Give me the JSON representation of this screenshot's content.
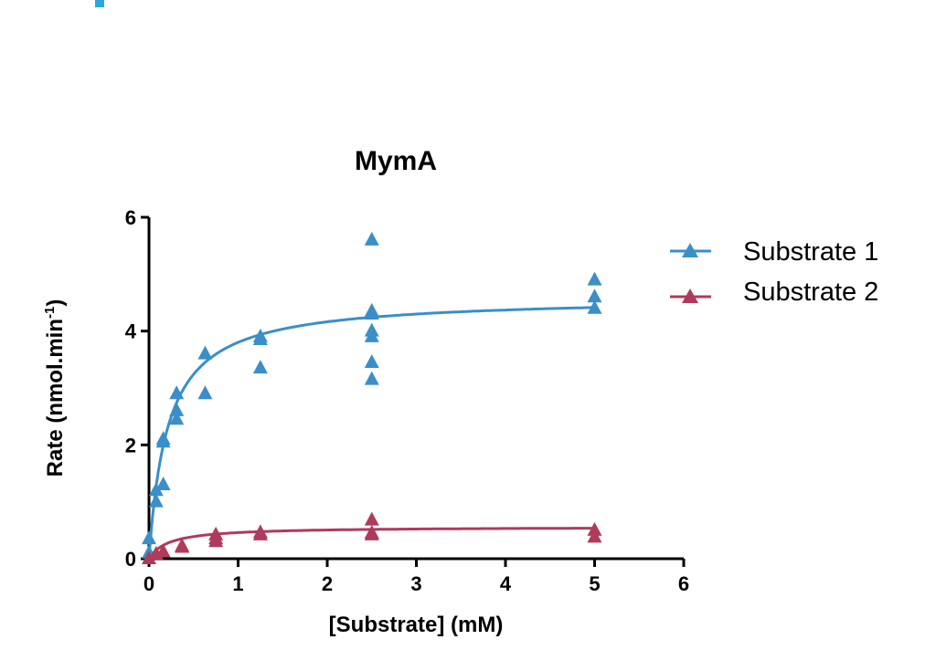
{
  "colors": {
    "substrate1": "#3a8fc8",
    "substrate2": "#b03a5b",
    "corner_mark": "#29a8e0"
  },
  "chart_data": {
    "type": "scatter",
    "title": "MymA",
    "xlabel": "[Substrate] (mM)",
    "ylabel_main": "Rate (nmol.min",
    "ylabel_sup": "-1",
    "ylabel_close": ")",
    "xlim": [
      0,
      6
    ],
    "ylim": [
      0,
      6
    ],
    "xticks": [
      "0",
      "1",
      "2",
      "3",
      "4",
      "5",
      "6"
    ],
    "yticks": [
      "0",
      "2",
      "4",
      "6"
    ],
    "grid": false,
    "legend_position": "right",
    "marker": "triangle",
    "series": [
      {
        "name": "Substrate 1",
        "fit": "Michaelis-Menten",
        "vmax": 4.6,
        "km": 0.21,
        "points": [
          [
            0.0,
            0.35
          ],
          [
            0.0,
            0.1
          ],
          [
            0.08,
            1.0
          ],
          [
            0.08,
            1.2
          ],
          [
            0.16,
            1.3
          ],
          [
            0.16,
            2.05
          ],
          [
            0.16,
            2.1
          ],
          [
            0.31,
            2.45
          ],
          [
            0.31,
            2.6
          ],
          [
            0.31,
            2.9
          ],
          [
            0.63,
            2.9
          ],
          [
            0.63,
            3.6
          ],
          [
            1.25,
            3.35
          ],
          [
            1.25,
            3.85
          ],
          [
            1.25,
            3.9
          ],
          [
            2.5,
            3.15
          ],
          [
            2.5,
            3.45
          ],
          [
            2.5,
            3.9
          ],
          [
            2.5,
            4.0
          ],
          [
            2.5,
            4.3
          ],
          [
            2.5,
            4.35
          ],
          [
            2.5,
            5.6
          ],
          [
            5.0,
            4.4
          ],
          [
            5.0,
            4.6
          ],
          [
            5.0,
            4.9
          ]
        ]
      },
      {
        "name": "Substrate 2",
        "fit": "Michaelis-Menten",
        "vmax": 0.56,
        "km": 0.22,
        "points": [
          [
            0.0,
            0.0
          ],
          [
            0.08,
            0.08
          ],
          [
            0.16,
            0.12
          ],
          [
            0.37,
            0.2
          ],
          [
            0.37,
            0.22
          ],
          [
            0.75,
            0.3
          ],
          [
            0.75,
            0.35
          ],
          [
            0.75,
            0.42
          ],
          [
            1.25,
            0.42
          ],
          [
            1.25,
            0.46
          ],
          [
            2.5,
            0.42
          ],
          [
            2.5,
            0.45
          ],
          [
            2.5,
            0.68
          ],
          [
            5.0,
            0.38
          ],
          [
            5.0,
            0.5
          ]
        ]
      }
    ]
  }
}
